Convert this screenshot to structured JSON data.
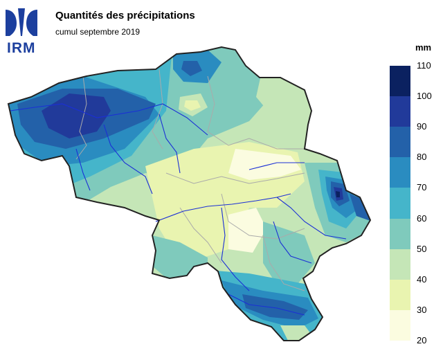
{
  "header": {
    "logo_text": "IRM",
    "title": "Quantités des précipitations",
    "subtitle": "cumul septembre 2019"
  },
  "legend": {
    "unit": "mm",
    "bins": [
      {
        "min": 100,
        "max": 110,
        "color": "#0b2160"
      },
      {
        "min": 90,
        "max": 100,
        "color": "#213a9a"
      },
      {
        "min": 80,
        "max": 90,
        "color": "#2361a9"
      },
      {
        "min": 70,
        "max": 80,
        "color": "#2a8cc0"
      },
      {
        "min": 60,
        "max": 70,
        "color": "#45b5ca"
      },
      {
        "min": 50,
        "max": 60,
        "color": "#7fcabc"
      },
      {
        "min": 40,
        "max": 50,
        "color": "#c5e6b7"
      },
      {
        "min": 30,
        "max": 40,
        "color": "#e9f4b0"
      },
      {
        "min": 20,
        "max": 30,
        "color": "#fbfce0"
      }
    ],
    "ticks": [
      "110",
      "100",
      "90",
      "80",
      "70",
      "60",
      "50",
      "40",
      "30",
      "20"
    ]
  },
  "map": {
    "region": "Belgique",
    "border_color": "#222222",
    "river_color": "#1b2fd6",
    "province_border_color": "#aaaaaa"
  }
}
